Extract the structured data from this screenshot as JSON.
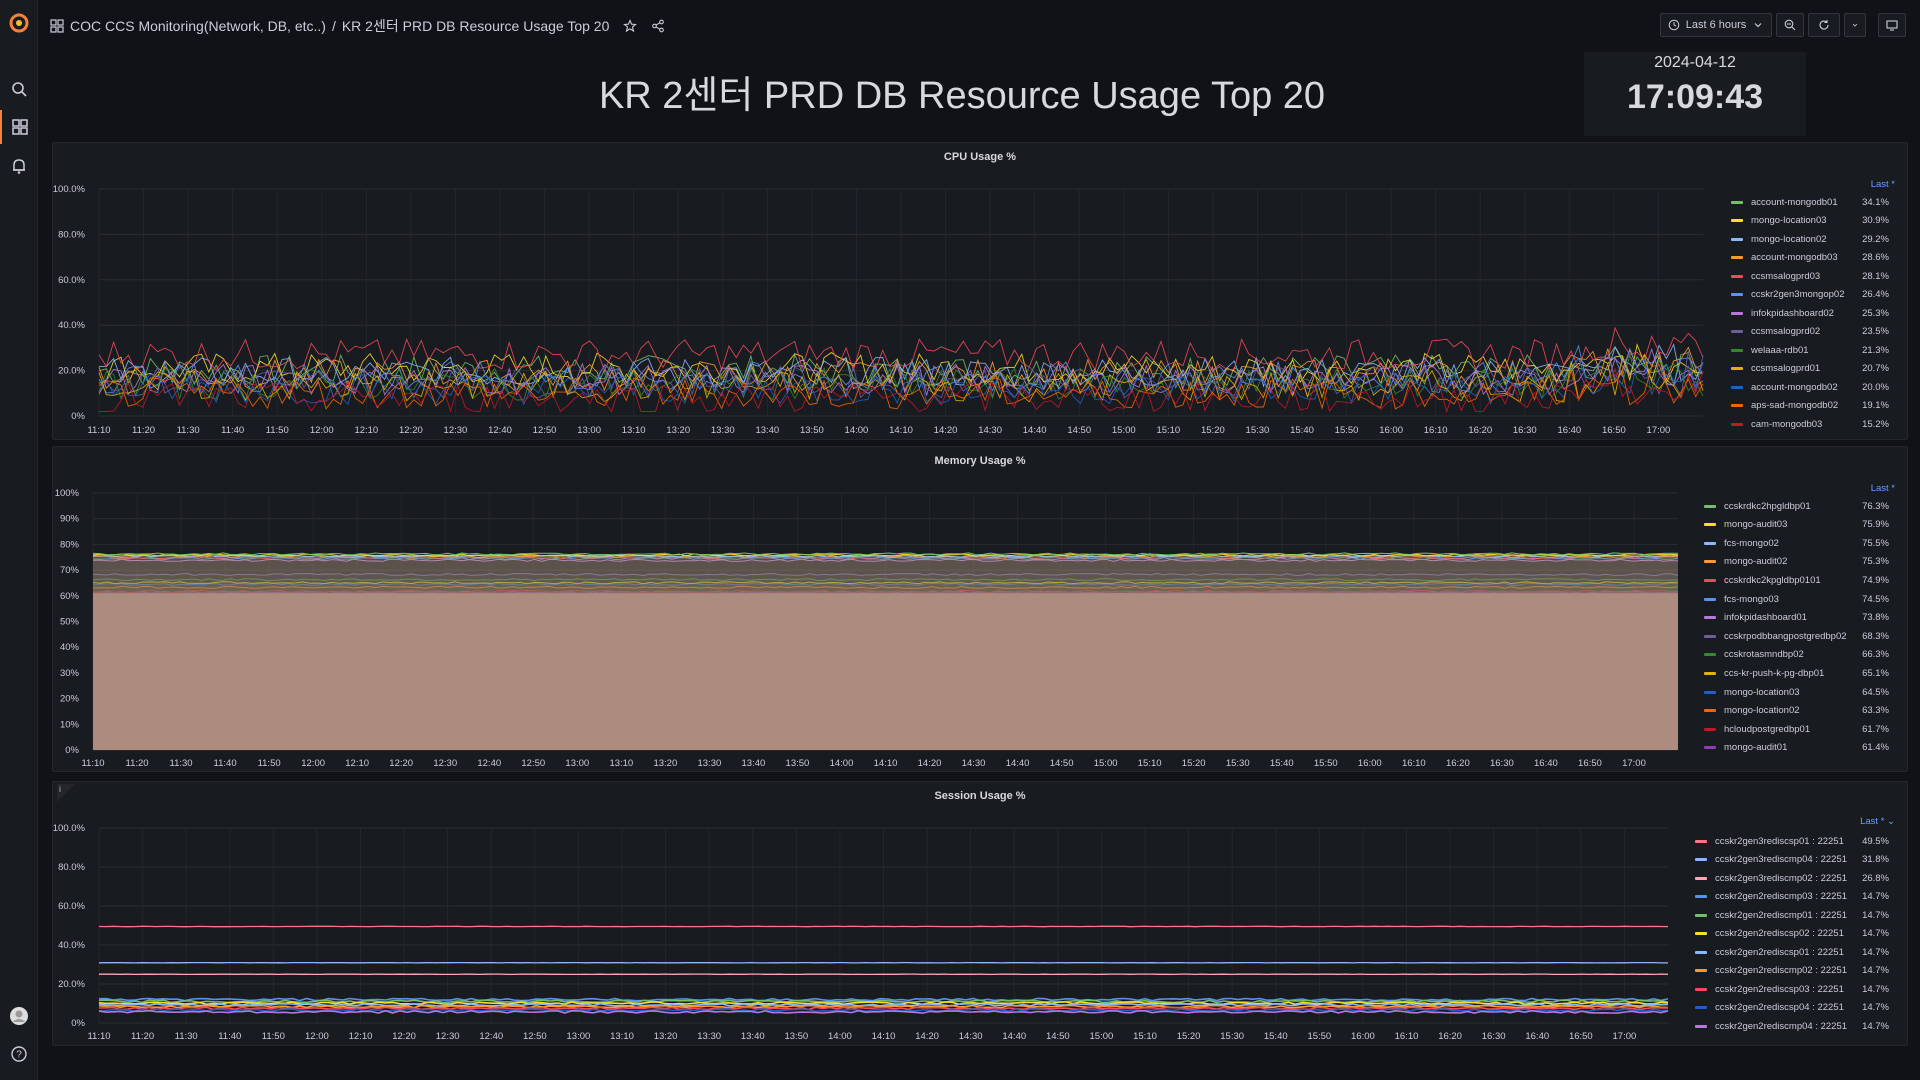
{
  "nav": {
    "folder": "COC CCS Monitoring(Network, DB, etc..)",
    "separator": "/",
    "dashboard": "KR 2센터 PRD DB Resource Usage Top 20",
    "time_range": "Last 6 hours"
  },
  "header": {
    "title": "KR 2센터 PRD DB Resource Usage Top 20",
    "date": "2024-04-12",
    "time": "17:09:43"
  },
  "x_ticks": [
    "11:10",
    "11:20",
    "11:30",
    "11:40",
    "11:50",
    "12:00",
    "12:10",
    "12:20",
    "12:30",
    "12:40",
    "12:50",
    "13:00",
    "13:10",
    "13:20",
    "13:30",
    "13:40",
    "13:50",
    "14:00",
    "14:10",
    "14:20",
    "14:30",
    "14:40",
    "14:50",
    "15:00",
    "15:10",
    "15:20",
    "15:30",
    "15:40",
    "15:50",
    "16:00",
    "16:10",
    "16:20",
    "16:30",
    "16:40",
    "16:50",
    "17:00"
  ],
  "chart_data": [
    {
      "type": "line",
      "title": "CPU Usage %",
      "legend_header": "Last *",
      "y_ticks": [
        "0%",
        "20.0%",
        "40.0%",
        "60.0%",
        "80.0%",
        "100.0%"
      ],
      "ylim": [
        0,
        100
      ],
      "series": [
        {
          "name": "account-mongodb01",
          "last": "34.1%",
          "color": "#73bf69",
          "level": 20
        },
        {
          "name": "mongo-location03",
          "last": "30.9%",
          "color": "#fade2a",
          "level": 21
        },
        {
          "name": "mongo-location02",
          "last": "29.2%",
          "color": "#8ab8ff",
          "level": 19
        },
        {
          "name": "account-mongodb03",
          "last": "28.6%",
          "color": "#ff9830",
          "level": 18
        },
        {
          "name": "ccsmsalogprd03",
          "last": "28.1%",
          "color": "#f2495c",
          "level": 27
        },
        {
          "name": "ccskr2gen3mongop02",
          "last": "26.4%",
          "color": "#5794f2",
          "level": 17
        },
        {
          "name": "infokpidashboard02",
          "last": "25.3%",
          "color": "#b877d9",
          "level": 16
        },
        {
          "name": "ccsmsalogprd02",
          "last": "23.5%",
          "color": "#705da0",
          "level": 15
        },
        {
          "name": "welaaa-rdb01",
          "last": "21.3%",
          "color": "#37872d",
          "level": 14
        },
        {
          "name": "ccsmsalogprd01",
          "last": "20.7%",
          "color": "#e0b400",
          "level": 13
        },
        {
          "name": "account-mongodb02",
          "last": "20.0%",
          "color": "#1f60c4",
          "level": 12
        },
        {
          "name": "aps-sad-mongodb02",
          "last": "19.1%",
          "color": "#fa6400",
          "level": 10
        },
        {
          "name": "cam-mongodb03",
          "last": "15.2%",
          "color": "#c4162a",
          "level": 8
        }
      ]
    },
    {
      "type": "area",
      "title": "Memory Usage %",
      "legend_header": "Last *",
      "y_ticks": [
        "0%",
        "10%",
        "20%",
        "30%",
        "40%",
        "50%",
        "60%",
        "70%",
        "80%",
        "90%",
        "100%"
      ],
      "ylim": [
        0,
        100
      ],
      "series": [
        {
          "name": "ccskrdkc2hpgldbp01",
          "last": "76.3%",
          "color": "#73bf69"
        },
        {
          "name": "mongo-audit03",
          "last": "75.9%",
          "color": "#fade2a"
        },
        {
          "name": "fcs-mongo02",
          "last": "75.5%",
          "color": "#8ab8ff"
        },
        {
          "name": "mongo-audit02",
          "last": "75.3%",
          "color": "#ff9830"
        },
        {
          "name": "ccskrdkc2kpgldbp0101",
          "last": "74.9%",
          "color": "#f2495c"
        },
        {
          "name": "fcs-mongo03",
          "last": "74.5%",
          "color": "#5794f2"
        },
        {
          "name": "infokpidashboard01",
          "last": "73.8%",
          "color": "#b877d9"
        },
        {
          "name": "ccskrpodbbangpostgredbp02",
          "last": "68.3%",
          "color": "#705da0"
        },
        {
          "name": "ccskrotasmndbp02",
          "last": "66.3%",
          "color": "#37872d"
        },
        {
          "name": "ccs-kr-push-k-pg-dbp01",
          "last": "65.1%",
          "color": "#e0b400"
        },
        {
          "name": "mongo-location03",
          "last": "64.5%",
          "color": "#1f60c4"
        },
        {
          "name": "mongo-location02",
          "last": "63.3%",
          "color": "#fa6400"
        },
        {
          "name": "hcloudpostgredbp01",
          "last": "61.7%",
          "color": "#c4162a"
        },
        {
          "name": "mongo-audit01",
          "last": "61.4%",
          "color": "#8f3bb8"
        }
      ]
    },
    {
      "type": "line",
      "title": "Session Usage %",
      "legend_header": "Last * ⌄",
      "y_ticks": [
        "0%",
        "20.0%",
        "40.0%",
        "60.0%",
        "80.0%",
        "100.0%"
      ],
      "ylim": [
        0,
        100
      ],
      "series": [
        {
          "name": "ccskr2gen3rediscsp01 : 22251",
          "last": "49.5%",
          "color": "#ff7383"
        },
        {
          "name": "ccskr2gen3rediscmp04 : 22251",
          "last": "31.8%",
          "color": "#8ab8ff"
        },
        {
          "name": "ccskr2gen3rediscmp02 : 22251",
          "last": "26.8%",
          "color": "#ffa6b0"
        },
        {
          "name": "ccskr2gen2rediscmp03 : 22251",
          "last": "14.7%",
          "color": "#5794f2"
        },
        {
          "name": "ccskr2gen2rediscmp01 : 22251",
          "last": "14.7%",
          "color": "#73bf69"
        },
        {
          "name": "ccskr2gen2rediscsp02 : 22251",
          "last": "14.7%",
          "color": "#fade2a"
        },
        {
          "name": "ccskr2gen2rediscsp01 : 22251",
          "last": "14.7%",
          "color": "#8ab8ff"
        },
        {
          "name": "ccskr2gen2rediscmp02 : 22251",
          "last": "14.7%",
          "color": "#ff9830"
        },
        {
          "name": "ccskr2gen2rediscsp03 : 22251",
          "last": "14.7%",
          "color": "#f2495c"
        },
        {
          "name": "ccskr2gen2rediscsp04 : 22251",
          "last": "14.7%",
          "color": "#1f60c4"
        },
        {
          "name": "ccskr2gen2rediscmp04 : 22251",
          "last": "14.7%",
          "color": "#b877d9"
        }
      ]
    }
  ]
}
